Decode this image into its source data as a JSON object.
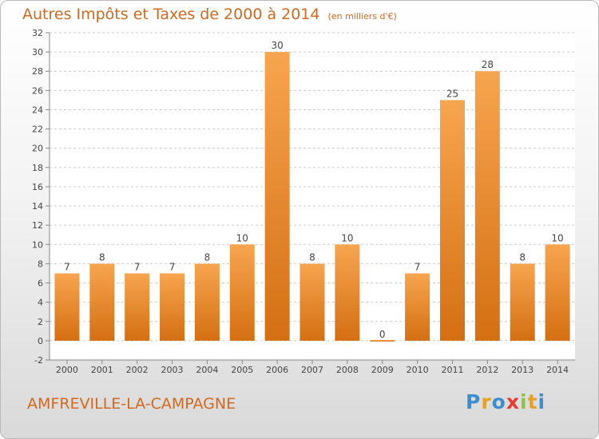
{
  "title": "Autres Impôts et Taxes de 2000 à 2014",
  "subtitle": "(en milliers d'€)",
  "city": "AMFREVILLE-LA-CAMPAGNE",
  "logo": {
    "letters": [
      "P",
      "r",
      "o",
      "x",
      "i",
      "t",
      "i"
    ],
    "colors": [
      "#3b8fd0",
      "#e8a020",
      "#3b8fd0",
      "#e83a30",
      "#8cc63f",
      "#e8a020",
      "#3b8fd0"
    ]
  },
  "colors": {
    "title": "#d2691e",
    "bar_top": "#f7a54f",
    "bar_bottom": "#d46f12",
    "grid": "#cccccc"
  },
  "chart_data": {
    "type": "bar",
    "categories": [
      "2000",
      "2001",
      "2002",
      "2003",
      "2004",
      "2005",
      "2006",
      "2007",
      "2008",
      "2009",
      "2010",
      "2011",
      "2012",
      "2013",
      "2014"
    ],
    "values": [
      7,
      8,
      7,
      7,
      8,
      10,
      30,
      8,
      10,
      0,
      7,
      25,
      28,
      8,
      10
    ],
    "ylim": [
      -2,
      32
    ],
    "yticks": [
      -2,
      0,
      2,
      4,
      6,
      8,
      10,
      12,
      14,
      16,
      18,
      20,
      22,
      24,
      26,
      28,
      30,
      32
    ],
    "grid": "horizontal dashed",
    "title": "Autres Impôts et Taxes de 2000 à 2014",
    "xlabel": "",
    "ylabel": ""
  }
}
